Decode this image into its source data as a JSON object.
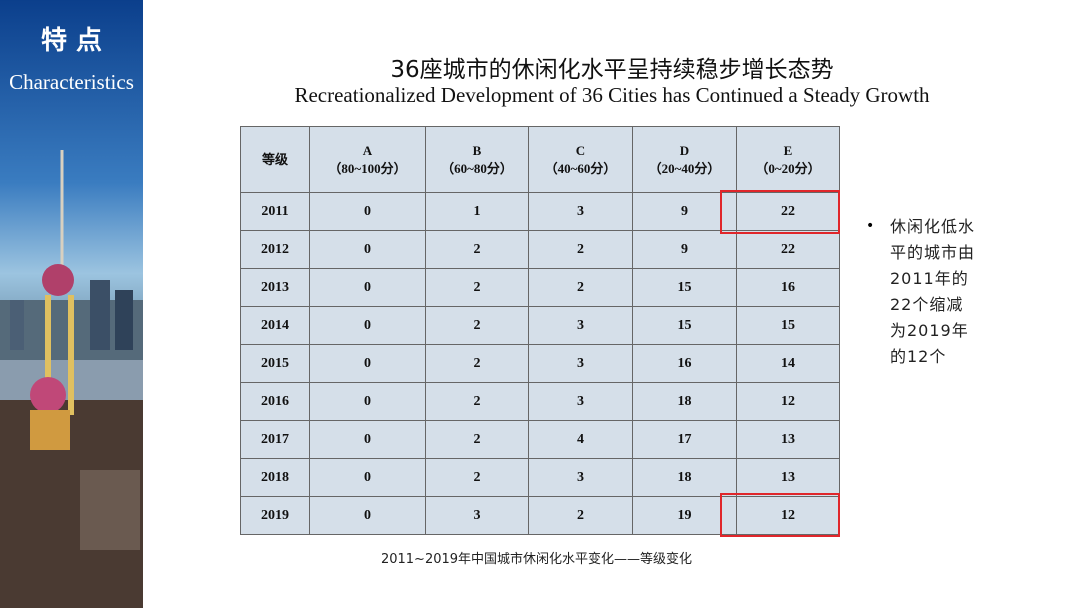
{
  "sidebar": {
    "title": "特 点",
    "subtitle": "Characteristics"
  },
  "header": {
    "title": "36座城市的休闲化水平呈持续稳步增长态势",
    "subtitle": "Recreationalized Development of 36 Cities has Continued a Steady Growth"
  },
  "table": {
    "corner": "等级",
    "columns": [
      {
        "grade": "A",
        "range": "（80~100分）"
      },
      {
        "grade": "B",
        "range": "（60~80分）"
      },
      {
        "grade": "C",
        "range": "（40~60分）"
      },
      {
        "grade": "D",
        "range": "（20~40分）"
      },
      {
        "grade": "E",
        "range": "（0~20分）"
      }
    ],
    "rows": [
      [
        2011,
        0,
        1,
        3,
        9,
        22
      ],
      [
        2012,
        0,
        2,
        2,
        9,
        22
      ],
      [
        2013,
        0,
        2,
        2,
        15,
        16
      ],
      [
        2014,
        0,
        2,
        3,
        15,
        15
      ],
      [
        2015,
        0,
        2,
        3,
        16,
        14
      ],
      [
        2016,
        0,
        2,
        3,
        18,
        12
      ],
      [
        2017,
        0,
        2,
        4,
        17,
        13
      ],
      [
        2018,
        0,
        2,
        3,
        18,
        13
      ],
      [
        2019,
        0,
        3,
        2,
        19,
        12
      ]
    ],
    "caption": "2011~2019年中国城市休闲化水平变化——等级变化"
  },
  "note": "休闲化低水平的城市由2011年的22个缩减为2019年的12个"
}
